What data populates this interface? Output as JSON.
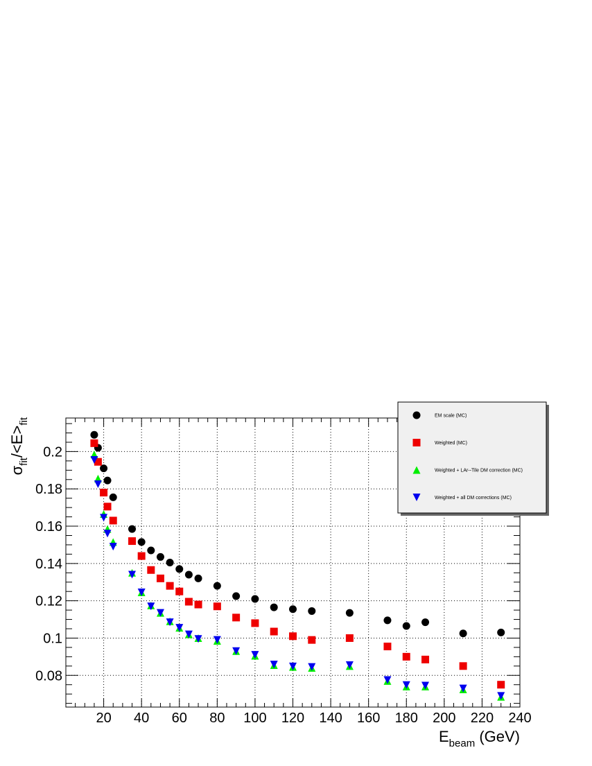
{
  "chart_data": {
    "type": "scatter",
    "xlim": [
      0,
      240
    ],
    "ylim": [
      0.063,
      0.218
    ],
    "grid": true,
    "legend_position": "top-right",
    "x_ticks": [
      20,
      40,
      60,
      80,
      100,
      120,
      140,
      160,
      180,
      200,
      220,
      240
    ],
    "y_ticks": [
      0.08,
      0.1,
      0.12,
      0.14,
      0.16,
      0.18,
      0.2
    ],
    "y_tick_labels": [
      "0.08",
      "0.1",
      "0.12",
      "0.14",
      "0.16",
      "0.18",
      "0.2"
    ],
    "xlabel": {
      "main": "E",
      "sub": "beam",
      "tail": " (GeV)"
    },
    "ylabel": {
      "sigma": "σ",
      "sub1": "fit",
      "mid": "/<E>",
      "sub2": "fit"
    },
    "series": [
      {
        "name": "EM scale (MC)",
        "marker": "circle",
        "color": "#000000",
        "x": [
          15,
          17,
          20,
          22,
          25,
          35,
          40,
          45,
          50,
          55,
          60,
          65,
          70,
          80,
          90,
          100,
          110,
          120,
          130,
          150,
          170,
          180,
          190,
          210,
          230
        ],
        "y": [
          0.209,
          0.202,
          0.191,
          0.1845,
          0.1755,
          0.1585,
          0.1515,
          0.147,
          0.1435,
          0.1405,
          0.137,
          0.134,
          0.132,
          0.128,
          0.1225,
          0.121,
          0.1165,
          0.1155,
          0.1145,
          0.1135,
          0.1095,
          0.1065,
          0.1085,
          0.1025,
          0.103
        ]
      },
      {
        "name": "Weighted (MC)",
        "marker": "square",
        "color": "#ee0000",
        "x": [
          15,
          17,
          20,
          22,
          25,
          35,
          40,
          45,
          50,
          55,
          60,
          65,
          70,
          80,
          90,
          100,
          110,
          120,
          130,
          150,
          170,
          180,
          190,
          210,
          230
        ],
        "y": [
          0.2045,
          0.1945,
          0.178,
          0.1705,
          0.163,
          0.152,
          0.144,
          0.1365,
          0.132,
          0.128,
          0.125,
          0.1195,
          0.118,
          0.117,
          0.111,
          0.108,
          0.1035,
          0.101,
          0.099,
          0.1,
          0.0955,
          0.09,
          0.0885,
          0.085,
          0.075
        ]
      },
      {
        "name": "Weighted + LAr--Tile DM correction (MC)",
        "marker": "triangle-up",
        "color": "#00ee00",
        "x": [
          15,
          17,
          20,
          22,
          25,
          35,
          40,
          45,
          50,
          55,
          60,
          65,
          70,
          80,
          90,
          100,
          110,
          120,
          130,
          150,
          170,
          180,
          190,
          210,
          230
        ],
        "y": [
          0.1985,
          0.1855,
          0.1665,
          0.1585,
          0.1515,
          0.135,
          0.1245,
          0.1175,
          0.1135,
          0.109,
          0.1055,
          0.102,
          0.1,
          0.0985,
          0.093,
          0.0905,
          0.0855,
          0.0845,
          0.084,
          0.085,
          0.077,
          0.074,
          0.074,
          0.0725,
          0.0685
        ]
      },
      {
        "name": "Weighted + all DM corrections (MC)",
        "marker": "triangle-down",
        "color": "#0000ee",
        "x": [
          15,
          17,
          20,
          22,
          25,
          35,
          40,
          45,
          50,
          55,
          60,
          65,
          70,
          80,
          90,
          100,
          110,
          120,
          130,
          150,
          170,
          180,
          190,
          210,
          230
        ],
        "y": [
          0.1955,
          0.1825,
          0.1645,
          0.156,
          0.149,
          0.134,
          0.1245,
          0.117,
          0.1135,
          0.1085,
          0.1055,
          0.102,
          0.0995,
          0.099,
          0.093,
          0.091,
          0.0858,
          0.0848,
          0.0845,
          0.0855,
          0.0775,
          0.0748,
          0.0745,
          0.073,
          0.069
        ]
      }
    ]
  }
}
